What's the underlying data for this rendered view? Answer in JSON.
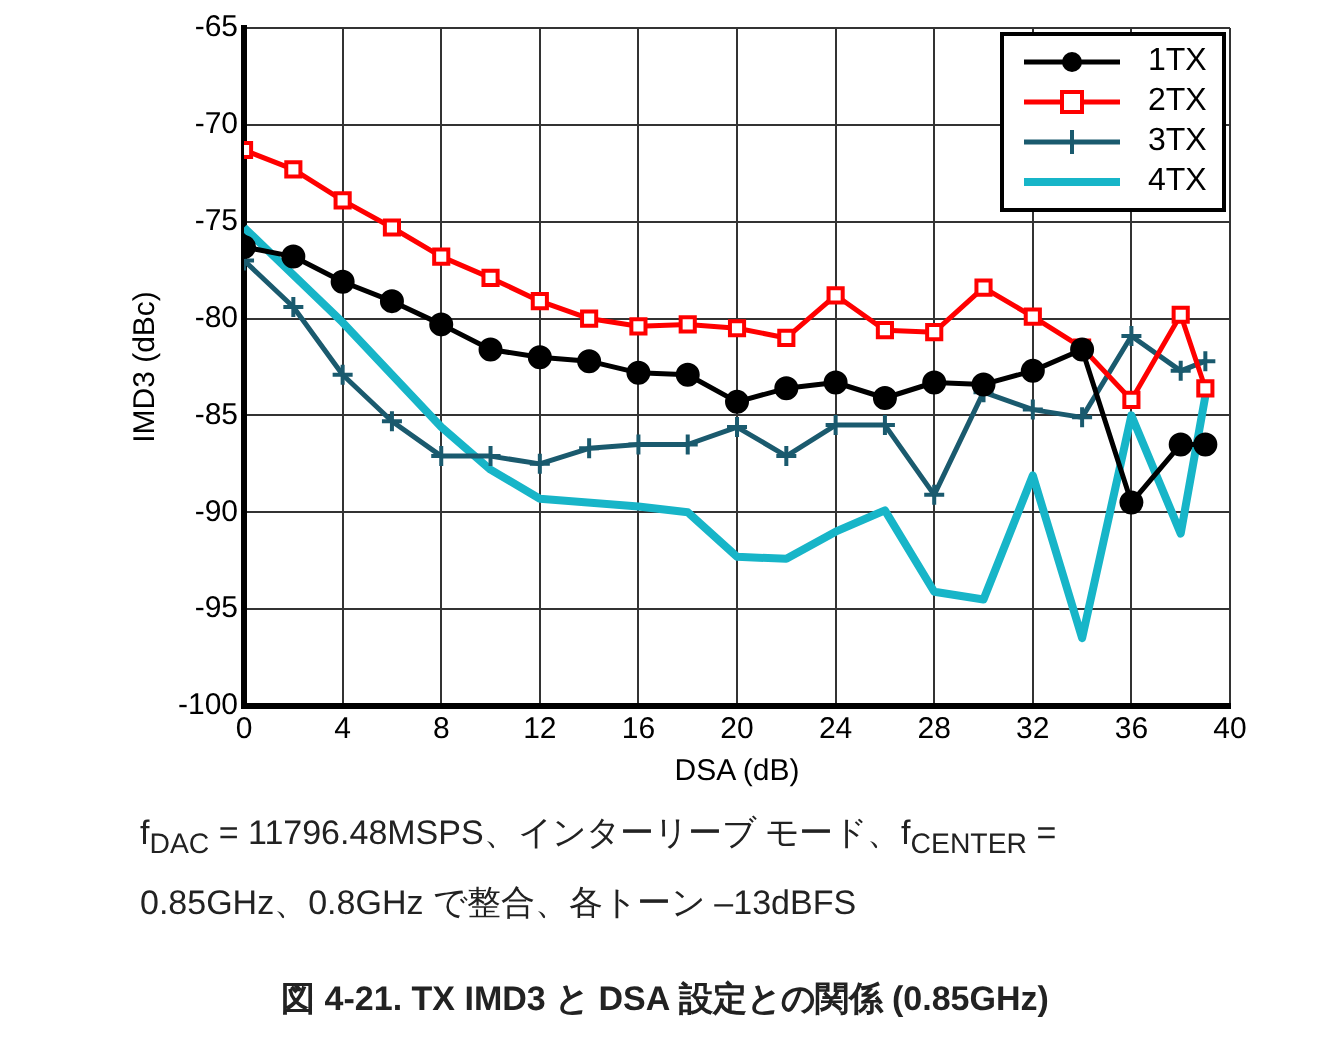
{
  "chart_data": {
    "type": "line",
    "title": "図 4-21. TX IMD3 と DSA 設定との関係 (0.85GHz)",
    "xlabel": "DSA (dB)",
    "ylabel": "IMD3 (dBc)",
    "annotations": [
      "f$_{DAC}$ = 11796.48MSPS、インターリーブ モード、f$_{CENTER}$ = 0.85GHz、0.8GHz で整合、各トーン –13dBFS"
    ],
    "x": [
      0,
      2,
      4,
      6,
      8,
      10,
      12,
      14,
      16,
      18,
      20,
      22,
      24,
      26,
      28,
      30,
      32,
      34,
      36,
      38,
      39
    ],
    "series": [
      {
        "name": "1TX",
        "color": "#000000",
        "marker": "circle",
        "values": [
          -76.3,
          -76.8,
          -78.1,
          -79.1,
          -80.3,
          -81.6,
          -82.0,
          -82.2,
          -82.8,
          -82.9,
          -84.3,
          -83.6,
          -83.3,
          -84.1,
          -83.3,
          -83.4,
          -82.7,
          -81.6,
          -89.5,
          -86.5,
          -86.5
        ]
      },
      {
        "name": "2TX",
        "color": "#ff0000",
        "marker": "square",
        "values": [
          -71.3,
          -72.3,
          -73.9,
          -75.3,
          -76.8,
          -77.9,
          -79.1,
          -80.0,
          -80.4,
          -80.3,
          -80.5,
          -81.0,
          -78.8,
          -80.6,
          -80.7,
          -78.4,
          -79.9,
          -81.5,
          -84.2,
          -79.8,
          -83.6
        ]
      },
      {
        "name": "3TX",
        "color": "#1a5a6e",
        "marker": "cross",
        "values": [
          -77.0,
          -79.4,
          -82.9,
          -85.3,
          -87.1,
          -87.1,
          -87.5,
          -86.7,
          -86.5,
          -86.5,
          -85.6,
          -87.1,
          -85.5,
          -85.5,
          -89.1,
          -83.8,
          -84.7,
          -85.1,
          -80.9,
          -82.7,
          -82.2
        ]
      },
      {
        "name": "4TX",
        "color": "#17b5c8",
        "marker": "none",
        "x": [
          0,
          4,
          8,
          10,
          12,
          16,
          18,
          20,
          22,
          24,
          26,
          28,
          30,
          32,
          34,
          36,
          38,
          39
        ],
        "values": [
          -75.3,
          -80.2,
          -85.6,
          -87.8,
          -89.3,
          -89.7,
          -90.0,
          -92.3,
          -92.4,
          -91.0,
          -89.9,
          -94.1,
          -94.5,
          -88.1,
          -96.5,
          -85.0,
          -91.1,
          -84.0
        ]
      }
    ],
    "xlim": [
      0,
      40
    ],
    "xticks": [
      0,
      4,
      8,
      12,
      16,
      20,
      24,
      28,
      32,
      36,
      40
    ],
    "ylim": [
      -100,
      -65
    ],
    "yticks": [
      -100,
      -95,
      -90,
      -85,
      -80,
      -75,
      -70,
      -65
    ],
    "grid": true,
    "legend": "top right",
    "line_style": "solid"
  }
}
